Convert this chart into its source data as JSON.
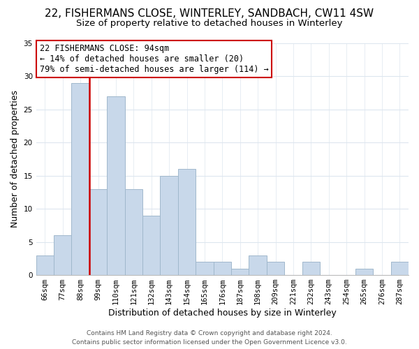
{
  "title": "22, FISHERMANS CLOSE, WINTERLEY, SANDBACH, CW11 4SW",
  "subtitle": "Size of property relative to detached houses in Winterley",
  "xlabel": "Distribution of detached houses by size in Winterley",
  "ylabel": "Number of detached properties",
  "bin_labels": [
    "66sqm",
    "77sqm",
    "88sqm",
    "99sqm",
    "110sqm",
    "121sqm",
    "132sqm",
    "143sqm",
    "154sqm",
    "165sqm",
    "176sqm",
    "187sqm",
    "198sqm",
    "209sqm",
    "221sqm",
    "232sqm",
    "243sqm",
    "254sqm",
    "265sqm",
    "276sqm",
    "287sqm"
  ],
  "bar_values": [
    3,
    6,
    29,
    13,
    27,
    13,
    9,
    15,
    16,
    2,
    2,
    1,
    3,
    2,
    0,
    2,
    0,
    0,
    1,
    0,
    2
  ],
  "bar_color": "#c8d8ea",
  "bar_edge_color": "#a0b8cc",
  "vline_color": "#cc0000",
  "vline_x_index": 2.5,
  "ylim": [
    0,
    35
  ],
  "yticks": [
    0,
    5,
    10,
    15,
    20,
    25,
    30,
    35
  ],
  "annotation_line1": "22 FISHERMANS CLOSE: 94sqm",
  "annotation_line2": "← 14% of detached houses are smaller (20)",
  "annotation_line3": "79% of semi-detached houses are larger (114) →",
  "annotation_box_color": "#ffffff",
  "annotation_box_edge": "#cc0000",
  "footer_line1": "Contains HM Land Registry data © Crown copyright and database right 2024.",
  "footer_line2": "Contains public sector information licensed under the Open Government Licence v3.0.",
  "background_color": "#ffffff",
  "grid_color": "#dde6ef",
  "title_fontsize": 11,
  "subtitle_fontsize": 9.5,
  "ylabel_fontsize": 9,
  "xlabel_fontsize": 9,
  "tick_fontsize": 7.5,
  "annotation_fontsize": 8.5,
  "footer_fontsize": 6.5
}
